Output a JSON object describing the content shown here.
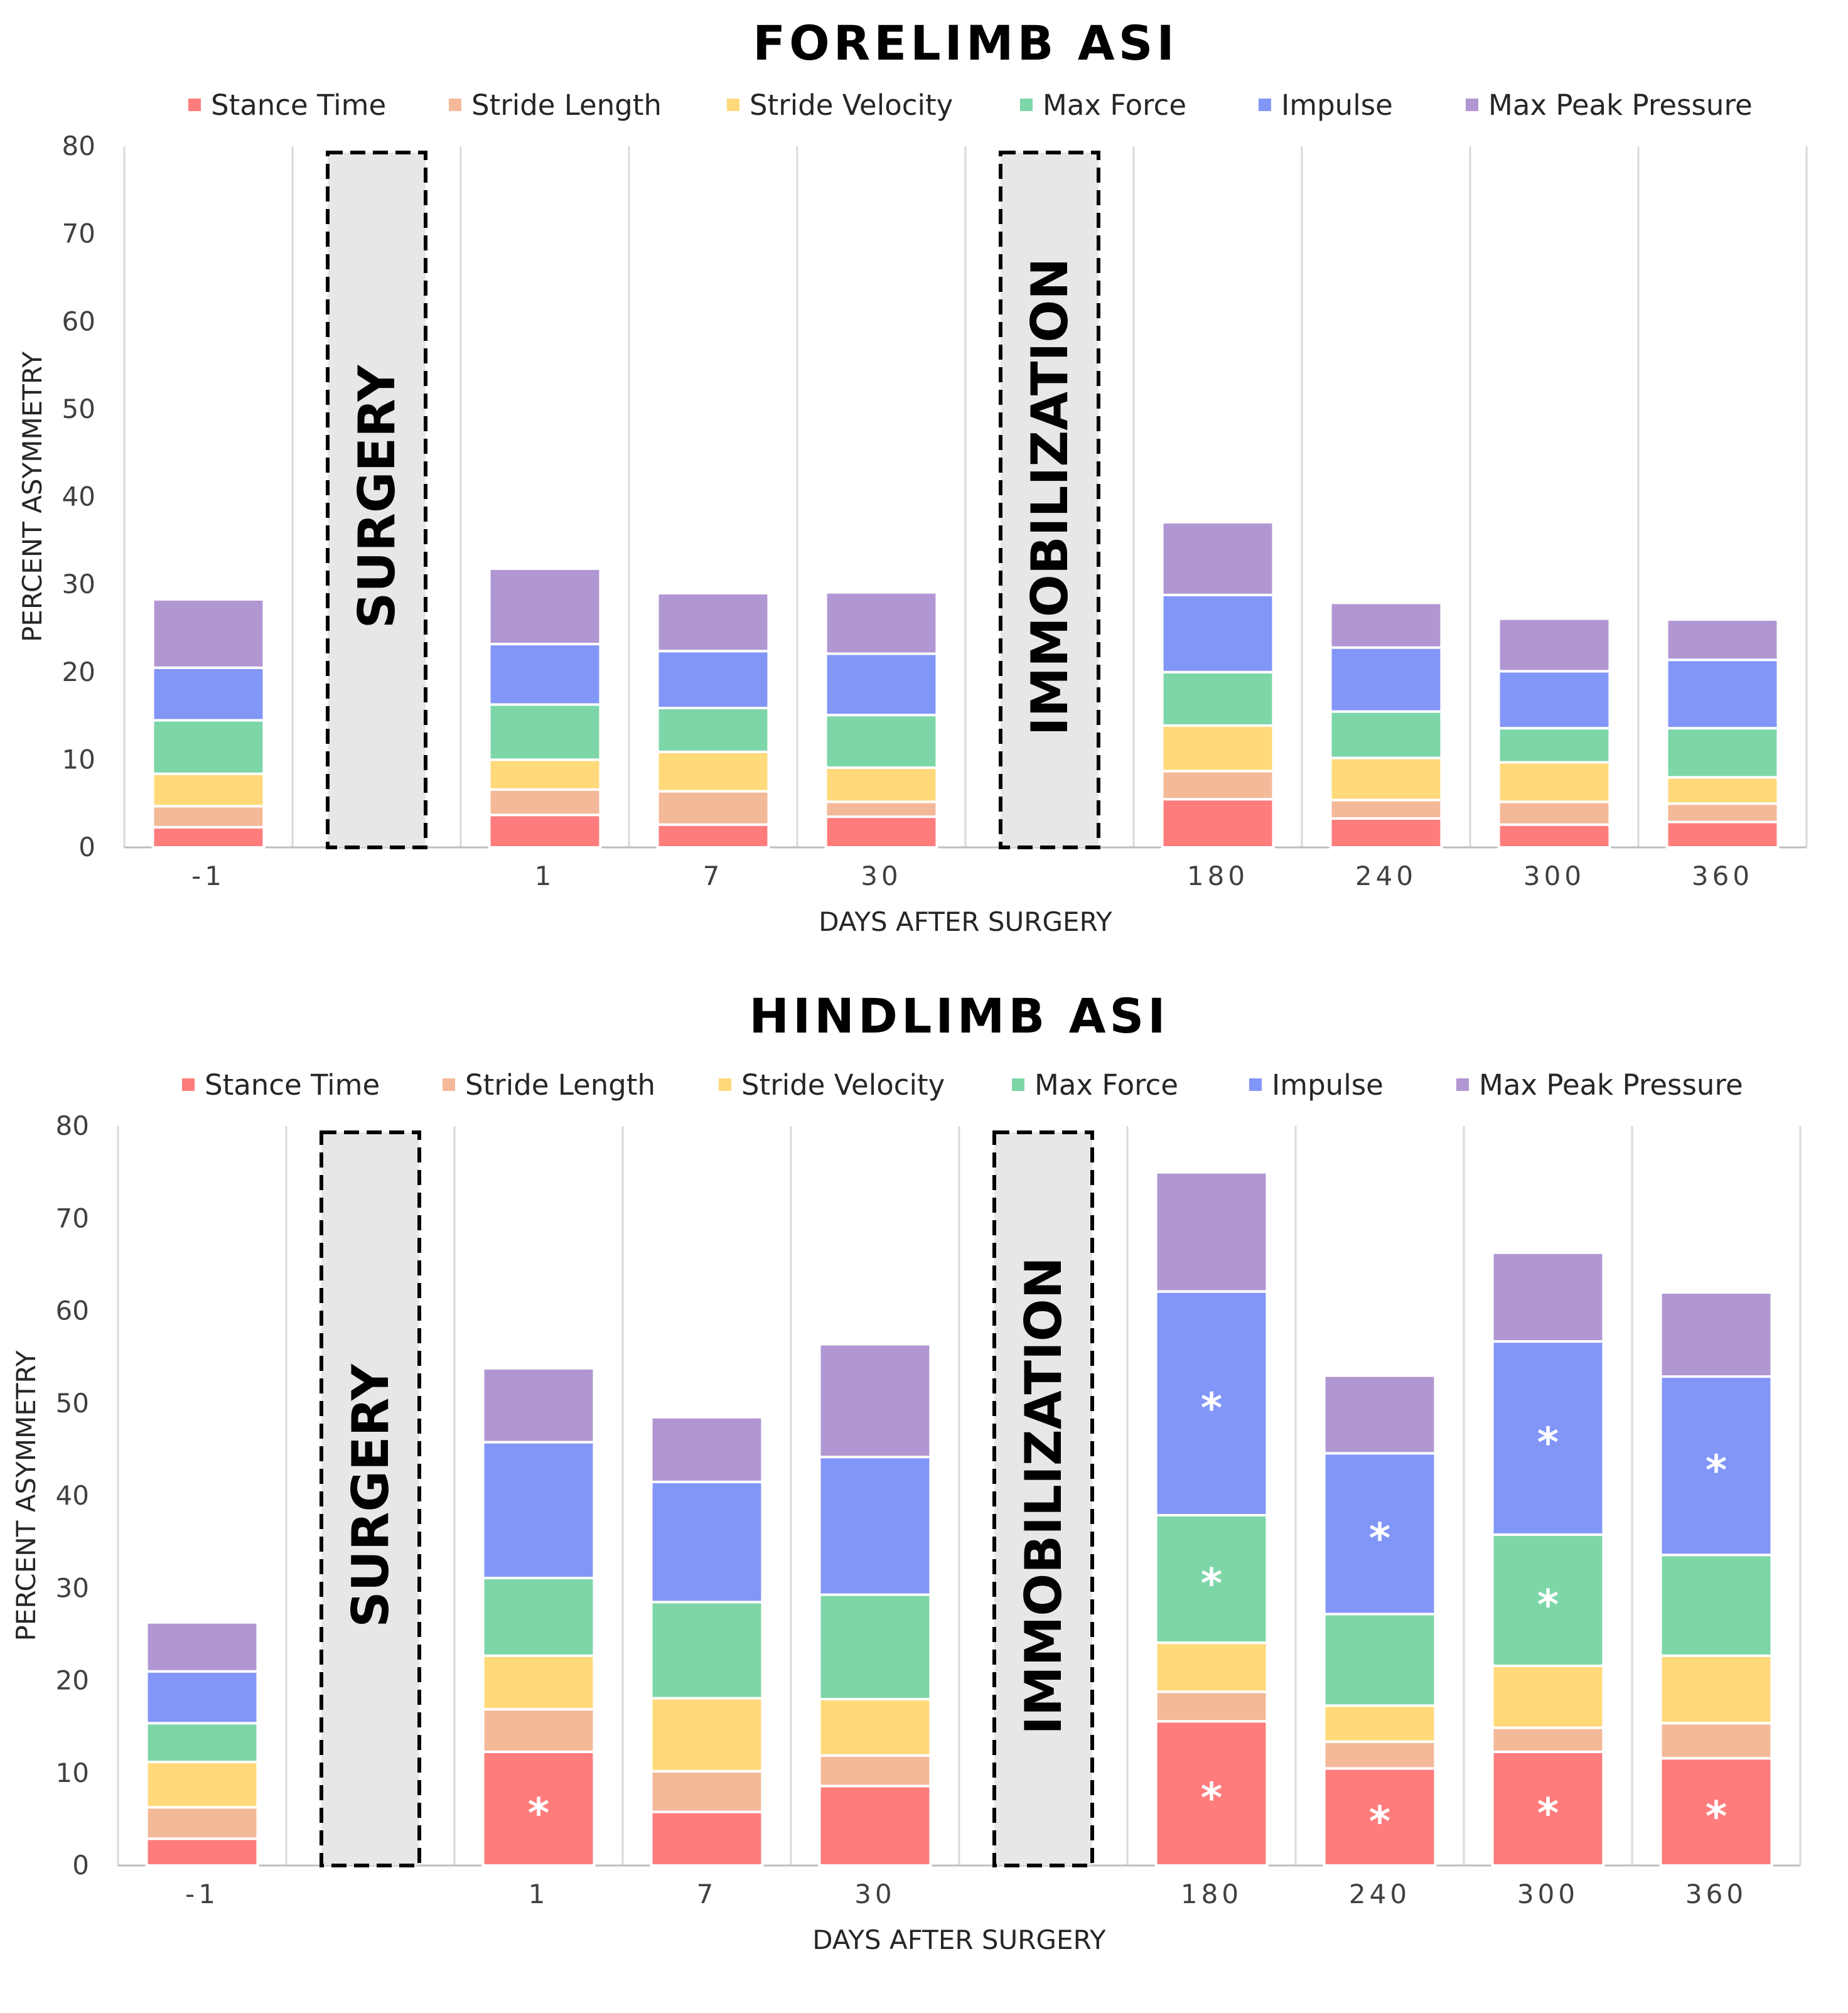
{
  "chart_data": [
    {
      "type": "bar",
      "stacked": true,
      "title": "FORELIMB  ASI",
      "xlabel": "DAYS AFTER SURGERY",
      "ylabel": "PERCENT ASYMMETRY",
      "ylim": [
        0,
        80
      ],
      "yticks": [
        "0",
        "10",
        "20",
        "30",
        "40",
        "50",
        "60",
        "70",
        "80"
      ],
      "categories": [
        "-1",
        "",
        "1",
        "7",
        "30",
        "",
        "180",
        "240",
        "300",
        "360"
      ],
      "series": [
        {
          "name": "Stance Time",
          "color": "#FF7C7C",
          "values": [
            2.3,
            null,
            3.7,
            2.6,
            3.5,
            null,
            5.5,
            3.3,
            2.6,
            2.9
          ]
        },
        {
          "name": "Stride Length",
          "color": "#F4B999",
          "values": [
            2.4,
            null,
            2.9,
            3.8,
            1.7,
            null,
            3.2,
            2.1,
            2.6,
            2.1
          ]
        },
        {
          "name": "Stride Velocity",
          "color": "#FFD97A",
          "values": [
            3.7,
            null,
            3.4,
            4.5,
            3.9,
            null,
            5.2,
            4.8,
            4.5,
            3.0
          ]
        },
        {
          "name": "Max Force",
          "color": "#7DD6A8",
          "values": [
            6.1,
            null,
            6.3,
            5.0,
            6.0,
            null,
            6.1,
            5.3,
            3.9,
            5.6
          ]
        },
        {
          "name": "Impulse",
          "color": "#8296F8",
          "values": [
            6.0,
            null,
            6.9,
            6.5,
            7.0,
            null,
            8.8,
            7.3,
            6.5,
            7.8
          ]
        },
        {
          "name": "Max Peak Pressure",
          "color": "#B197D2",
          "values": [
            7.8,
            null,
            8.6,
            6.6,
            7.0,
            null,
            8.3,
            5.1,
            6.0,
            4.6
          ]
        }
      ],
      "annotations": [
        {
          "label": "SURGERY",
          "between": [
            "-1",
            "1"
          ]
        },
        {
          "label": "IMMOBILIZATION",
          "between": [
            "30",
            "180"
          ]
        }
      ],
      "stars": []
    },
    {
      "type": "bar",
      "stacked": true,
      "title": "HINDLIMB ASI",
      "xlabel": "DAYS AFTER SURGERY",
      "ylabel": "PERCENT ASYMMETRY",
      "ylim": [
        0,
        80
      ],
      "yticks": [
        "0",
        "10",
        "20",
        "30",
        "40",
        "50",
        "60",
        "70",
        "80"
      ],
      "categories": [
        "-1",
        "",
        "1",
        "7",
        "30",
        "",
        "180",
        "240",
        "300",
        "360"
      ],
      "series": [
        {
          "name": "Stance Time",
          "color": "#FF7C7C",
          "values": [
            2.9,
            null,
            12.3,
            5.8,
            8.6,
            null,
            15.6,
            10.5,
            12.3,
            11.6
          ]
        },
        {
          "name": "Stride Length",
          "color": "#F4B999",
          "values": [
            3.4,
            null,
            4.6,
            4.4,
            3.3,
            null,
            3.2,
            2.9,
            2.6,
            3.8
          ]
        },
        {
          "name": "Stride Velocity",
          "color": "#FFD97A",
          "values": [
            4.9,
            null,
            5.8,
            7.9,
            6.1,
            null,
            5.3,
            3.9,
            6.7,
            7.3
          ]
        },
        {
          "name": "Max Force",
          "color": "#7DD6A8",
          "values": [
            4.2,
            null,
            8.4,
            10.4,
            11.3,
            null,
            13.8,
            9.9,
            14.2,
            10.9
          ]
        },
        {
          "name": "Impulse",
          "color": "#8296F8",
          "values": [
            5.6,
            null,
            14.7,
            13.0,
            14.9,
            null,
            24.2,
            17.4,
            20.9,
            19.3
          ]
        },
        {
          "name": "Max Peak Pressure",
          "color": "#B197D2",
          "values": [
            5.3,
            null,
            8.0,
            7.0,
            12.2,
            null,
            12.9,
            8.4,
            9.6,
            9.1
          ]
        }
      ],
      "annotations": [
        {
          "label": "SURGERY",
          "between": [
            "-1",
            "1"
          ]
        },
        {
          "label": "IMMOBILIZATION",
          "between": [
            "30",
            "180"
          ]
        }
      ],
      "stars": [
        {
          "category": "1",
          "series": "Stance Time",
          "label": "*"
        },
        {
          "category": "180",
          "series": "Stance Time",
          "label": "*"
        },
        {
          "category": "180",
          "series": "Max Force",
          "label": "*"
        },
        {
          "category": "180",
          "series": "Impulse",
          "label": "*"
        },
        {
          "category": "240",
          "series": "Stance Time",
          "label": "*"
        },
        {
          "category": "240",
          "series": "Impulse",
          "label": "*"
        },
        {
          "category": "300",
          "series": "Stance Time",
          "label": "*"
        },
        {
          "category": "300",
          "series": "Max Force",
          "label": "*"
        },
        {
          "category": "300",
          "series": "Impulse",
          "label": "*"
        },
        {
          "category": "360",
          "series": "Stance Time",
          "label": "*"
        },
        {
          "category": "360",
          "series": "Impulse",
          "label": "*"
        }
      ]
    }
  ]
}
